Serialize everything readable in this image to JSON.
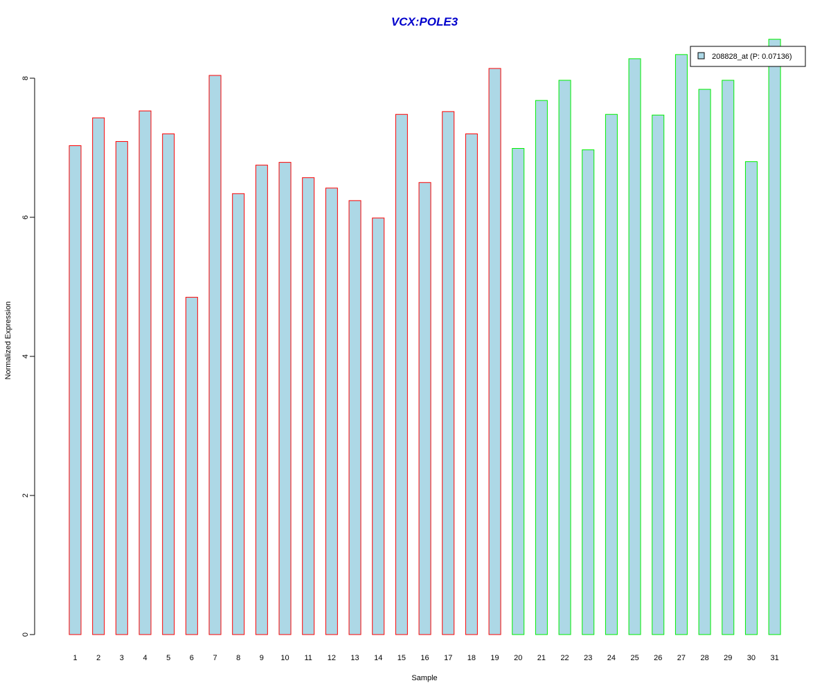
{
  "chart_data": {
    "type": "bar",
    "title": "VCX:POLE3",
    "xlabel": "Sample",
    "ylabel": "Normalized Expression",
    "categories": [
      "1",
      "2",
      "3",
      "4",
      "5",
      "6",
      "7",
      "8",
      "9",
      "10",
      "11",
      "12",
      "13",
      "14",
      "15",
      "16",
      "17",
      "18",
      "19",
      "20",
      "21",
      "22",
      "23",
      "24",
      "25",
      "26",
      "27",
      "28",
      "29",
      "30",
      "31"
    ],
    "series": [
      {
        "name": "208828_at (P: 0.07136)",
        "values": [
          7.03,
          7.43,
          7.09,
          7.53,
          7.2,
          4.85,
          8.04,
          6.34,
          6.75,
          6.79,
          6.57,
          6.42,
          6.24,
          5.99,
          7.48,
          6.5,
          7.52,
          7.2,
          8.14,
          6.99,
          7.68,
          7.97,
          6.97,
          7.48,
          8.28,
          7.47,
          8.34,
          7.84,
          7.97,
          6.8,
          8.56
        ]
      }
    ],
    "groups": [
      1,
      1,
      1,
      1,
      1,
      1,
      1,
      1,
      1,
      1,
      1,
      1,
      1,
      1,
      1,
      1,
      1,
      1,
      1,
      2,
      2,
      2,
      2,
      2,
      2,
      2,
      2,
      2,
      2,
      2,
      2
    ],
    "ylim": [
      0,
      8.56
    ],
    "yticks": [
      "0",
      "2",
      "4",
      "6",
      "8"
    ],
    "grid": false,
    "legend_position": "top-right",
    "colors": {
      "title": "#0000cc",
      "bar_fill": "#add8e6",
      "group1_border": "#ff0000",
      "group2_border": "#00ee00",
      "axis": "#000000"
    }
  }
}
